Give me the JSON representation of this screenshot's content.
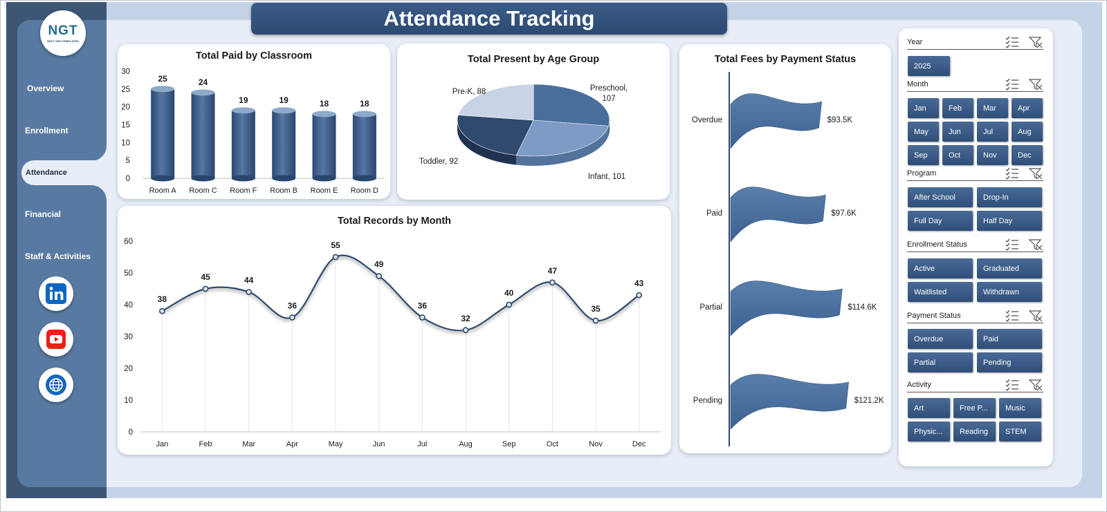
{
  "brand": {
    "logo_text": "NGT",
    "logo_subtext": "NEXT GEN TEMPLATES"
  },
  "page_title": "Attendance Tracking",
  "nav": {
    "items": [
      {
        "label": "Overview",
        "active": false
      },
      {
        "label": "Enrollment",
        "active": false
      },
      {
        "label": "Attendance",
        "active": true
      },
      {
        "label": "Financial",
        "active": false
      },
      {
        "label": "Staff & Activities",
        "active": false
      }
    ]
  },
  "social": [
    "linkedin-icon",
    "youtube-icon",
    "globe-icon"
  ],
  "colors": {
    "accent": "#2f4e78",
    "sidebar": "#587aa2",
    "sidebar_dark": "#3d5675",
    "main_bg": "#e8eef7",
    "title_bar": "#34537d"
  },
  "chart_data": [
    {
      "id": "paid-by-classroom",
      "type": "bar",
      "title": "Total Paid by Classroom",
      "categories": [
        "Room A",
        "Room C",
        "Room F",
        "Room B",
        "Room E",
        "Room D"
      ],
      "values": [
        25,
        24,
        19,
        19,
        18,
        18
      ],
      "ylim": [
        0,
        30
      ],
      "yticks": [
        0,
        5,
        10,
        15,
        20,
        25,
        30
      ]
    },
    {
      "id": "present-by-age-group",
      "type": "pie",
      "title": "Total Present by Age Group",
      "slices": [
        {
          "name": "Preschool",
          "value": 107,
          "label": "Preschool,",
          "value_label": "107"
        },
        {
          "name": "Infant",
          "value": 101,
          "label": "Infant, 101"
        },
        {
          "name": "Toddler",
          "value": 92,
          "label": "Toddler, 92"
        },
        {
          "name": "Pre-K",
          "value": 88,
          "label": "Pre-K, 88"
        }
      ]
    },
    {
      "id": "records-by-month",
      "type": "line",
      "title": "Total Records by Month",
      "categories": [
        "Jan",
        "Feb",
        "Mar",
        "Apr",
        "May",
        "Jun",
        "Jul",
        "Aug",
        "Sep",
        "Oct",
        "Nov",
        "Dec"
      ],
      "values": [
        38,
        45,
        44,
        36,
        55,
        49,
        36,
        32,
        40,
        47,
        35,
        43
      ],
      "ylim": [
        0,
        60
      ],
      "yticks": [
        0,
        10,
        20,
        30,
        40,
        50,
        60
      ]
    },
    {
      "id": "fees-by-payment-status",
      "type": "bar",
      "title": "Total Fees by Payment Status",
      "categories": [
        "Overdue",
        "Paid",
        "Partial",
        "Pending"
      ],
      "values": [
        93.5,
        97.6,
        114.6,
        121.2
      ],
      "value_labels": [
        "$93.5K",
        "$97.6K",
        "$114.6K",
        "$121.2K"
      ]
    }
  ],
  "slicers": [
    {
      "title": "Year",
      "items": [
        "2025"
      ]
    },
    {
      "title": "Month",
      "items": [
        "Jan",
        "Feb",
        "Mar",
        "Apr",
        "May",
        "Jun",
        "Jul",
        "Aug",
        "Sep",
        "Oct",
        "Nov",
        "Dec"
      ]
    },
    {
      "title": "Program",
      "items": [
        "After School",
        "Drop-In",
        "Full Day",
        "Half Day"
      ]
    },
    {
      "title": "Enrollment Status",
      "items": [
        "Active",
        "Graduated",
        "Waitlisted",
        "Withdrawn"
      ]
    },
    {
      "title": "Payment Status",
      "items": [
        "Overdue",
        "Paid",
        "Partial",
        "Pending"
      ]
    },
    {
      "title": "Activity",
      "items": [
        "Art",
        "Free P...",
        "Music",
        "Physic...",
        "Reading",
        "STEM"
      ]
    }
  ]
}
